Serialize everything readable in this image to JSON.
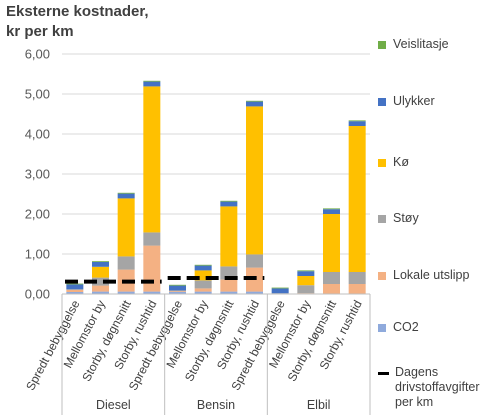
{
  "chart_data": {
    "type": "bar",
    "stacked": true,
    "title_lines": [
      "Eksterne kostnader,",
      "kr per km"
    ],
    "xlabel": "",
    "ylabel": "",
    "ylim": [
      0,
      6
    ],
    "y_ticks": [
      "0,00",
      "1,00",
      "2,00",
      "3,00",
      "4,00",
      "5,00",
      "6,00"
    ],
    "grid": true,
    "legend_position": "right",
    "groups": [
      "Diesel",
      "Bensin",
      "Elbil"
    ],
    "categories": [
      "Spredt bebyggelse",
      "Mellomstor by",
      "Storby, døgnsnitt",
      "Storby, rushtid"
    ],
    "series": [
      {
        "name": "CO2",
        "color": "#8FAADC",
        "values": [
          [
            0.05,
            0.06,
            0.06,
            0.06
          ],
          [
            0.05,
            0.06,
            0.06,
            0.06
          ],
          [
            0.0,
            0.0,
            0.0,
            0.0
          ]
        ]
      },
      {
        "name": "Lokale utslipp",
        "color": "#F4B183",
        "values": [
          [
            0.05,
            0.15,
            0.55,
            1.15
          ],
          [
            0.02,
            0.08,
            0.3,
            0.6
          ],
          [
            0.0,
            0.02,
            0.25,
            0.25
          ]
        ]
      },
      {
        "name": "Støy",
        "color": "#A5A5A5",
        "values": [
          [
            0.02,
            0.2,
            0.33,
            0.33
          ],
          [
            0.02,
            0.2,
            0.33,
            0.33
          ],
          [
            0.02,
            0.2,
            0.3,
            0.3
          ]
        ]
      },
      {
        "name": "Kø",
        "color": "#FFC000",
        "values": [
          [
            0.0,
            0.27,
            1.45,
            3.65
          ],
          [
            0.0,
            0.25,
            1.5,
            3.7
          ],
          [
            0.0,
            0.23,
            1.45,
            3.65
          ]
        ]
      },
      {
        "name": "Ulykker",
        "color": "#4472C4",
        "values": [
          [
            0.12,
            0.12,
            0.12,
            0.12
          ],
          [
            0.12,
            0.12,
            0.12,
            0.12
          ],
          [
            0.12,
            0.12,
            0.12,
            0.12
          ]
        ]
      },
      {
        "name": "Veislitasje",
        "color": "#70AD47",
        "values": [
          [
            0.02,
            0.02,
            0.02,
            0.02
          ],
          [
            0.02,
            0.02,
            0.02,
            0.02
          ],
          [
            0.02,
            0.02,
            0.02,
            0.02
          ]
        ]
      }
    ],
    "reference_line": {
      "name": "Dagens drivstoffavgifter per km",
      "color": "#000000",
      "values": [
        0.31,
        0.4,
        0.0
      ]
    },
    "legend_order": [
      "Veislitasje",
      "Ulykker",
      "Kø",
      "Støy",
      "Lokale utslipp",
      "CO2",
      "Dagens drivstoffavgifter per km"
    ]
  }
}
